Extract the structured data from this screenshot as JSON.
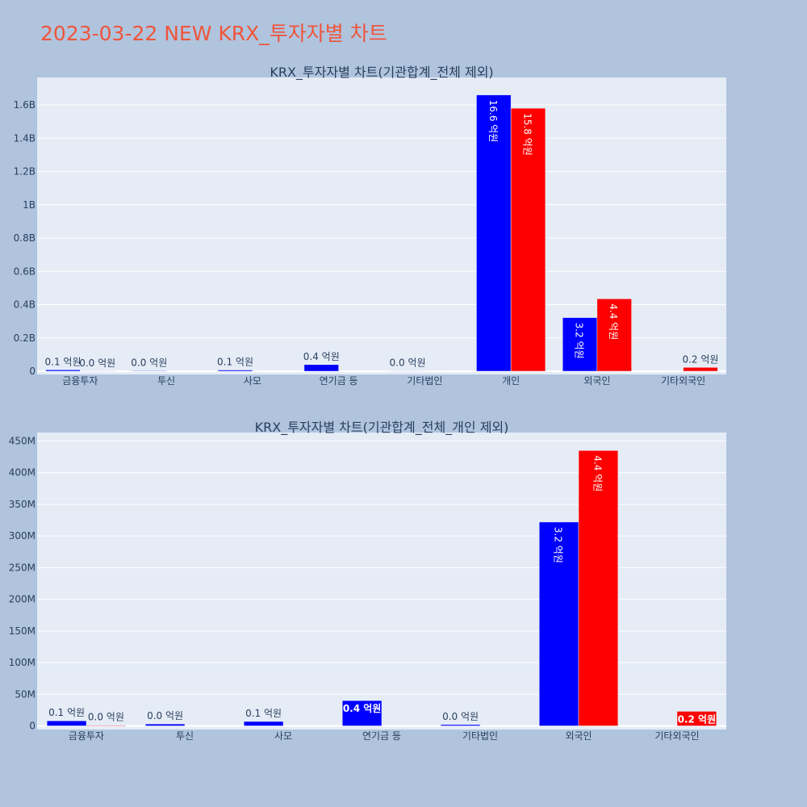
{
  "title": "2023-03-22 NEW KRX_투자자별 차트",
  "colors": {
    "background": "#b0c4de",
    "plot_bg": "#e5ecf6",
    "title": "#ef553b",
    "series_a": "#0000ff",
    "series_b": "#ff0000",
    "text": "#2a3f5f"
  },
  "chart_data": [
    {
      "type": "bar",
      "title": "KRX_투자자별 차트(기관합계_전체 제외)",
      "categories": [
        "금융투자",
        "투신",
        "사모",
        "연기금 등",
        "기타법인",
        "개인",
        "외국인",
        "기타외국인"
      ],
      "series": [
        {
          "values": [
            8000000,
            3000000,
            7000000,
            40000000,
            2000000,
            1660000000,
            322000000,
            null
          ],
          "labels": [
            "0.1 억원",
            "0.0 억원",
            "0.1 억원",
            "0.4 억원",
            "0.0 억원",
            "16.6 억원",
            "3.2 억원",
            ""
          ]
        },
        {
          "values": [
            1000000,
            null,
            null,
            null,
            null,
            1580000000,
            435000000,
            23000000
          ],
          "labels": [
            "0.0 억원",
            "",
            "",
            "",
            "",
            "15.8 억원",
            "4.4 억원",
            "0.2 억원"
          ]
        }
      ],
      "yticks": [
        0,
        200000000,
        400000000,
        600000000,
        800000000,
        1000000000,
        1200000000,
        1400000000,
        1600000000
      ],
      "ytick_labels": [
        "0",
        "0.2B",
        "0.4B",
        "0.6B",
        "0.8B",
        "1B",
        "1.2B",
        "1.4B",
        "1.6B"
      ],
      "ylim": [
        0,
        1760000000
      ],
      "grid": true
    },
    {
      "type": "bar",
      "title": "KRX_투자자별 차트(기관합계_전체_개인 제외)",
      "categories": [
        "금융투자",
        "투신",
        "사모",
        "연기금 등",
        "기타법인",
        "외국인",
        "기타외국인"
      ],
      "series": [
        {
          "values": [
            8000000,
            3000000,
            7000000,
            40000000,
            2000000,
            322000000,
            null
          ],
          "labels": [
            "0.1 억원",
            "0.0 억원",
            "0.1 억원",
            "0.4 억원",
            "0.0 억원",
            "3.2 억원",
            ""
          ]
        },
        {
          "values": [
            1000000,
            null,
            null,
            null,
            null,
            435000000,
            23000000
          ],
          "labels": [
            "0.0 억원",
            "",
            "",
            "",
            "",
            "4.4 억원",
            "0.2 억원"
          ]
        }
      ],
      "yticks": [
        0,
        50000000,
        100000000,
        150000000,
        200000000,
        250000000,
        300000000,
        350000000,
        400000000,
        450000000
      ],
      "ytick_labels": [
        "0",
        "50M",
        "100M",
        "150M",
        "200M",
        "250M",
        "300M",
        "350M",
        "400M",
        "450M"
      ],
      "ylim": [
        0,
        462000000
      ],
      "grid": true
    }
  ]
}
